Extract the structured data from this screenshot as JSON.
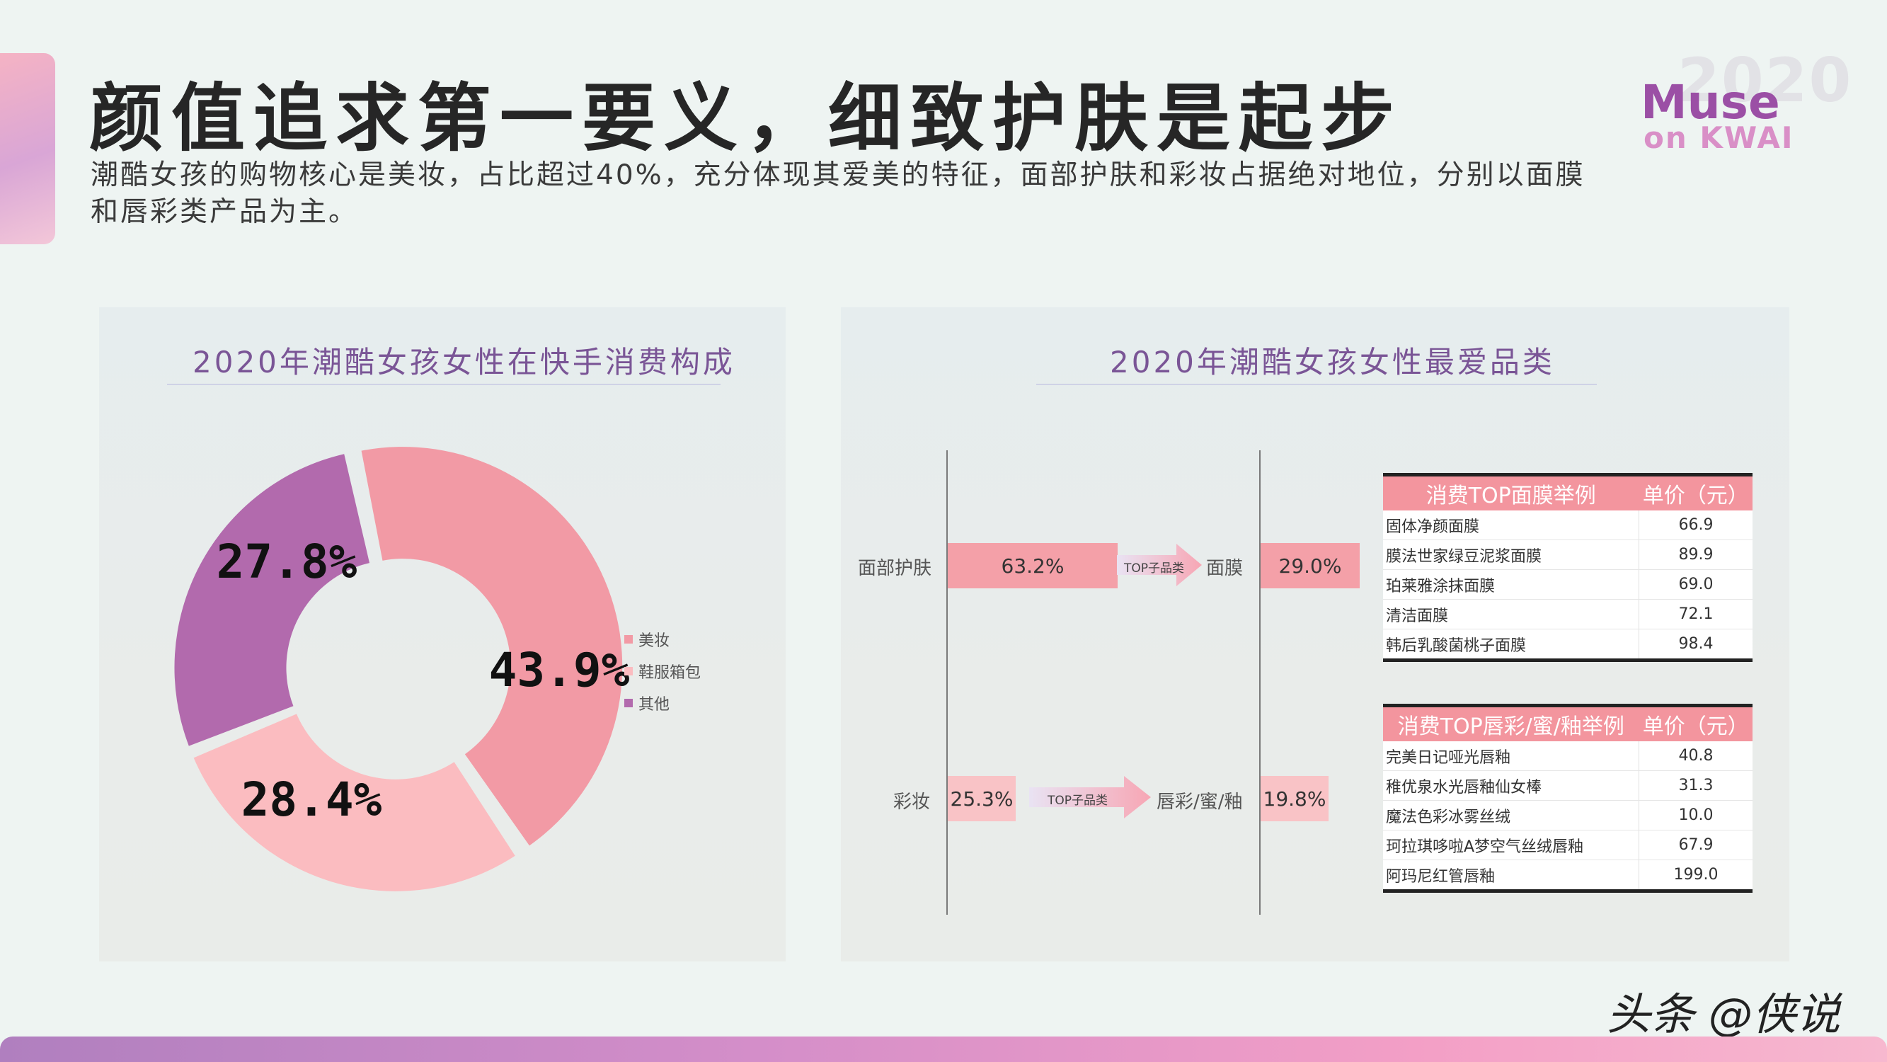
{
  "header": {
    "title": "颜值追求第一要义，细致护肤是起步",
    "subtitle": "潮酷女孩的购物核心是美妆，占比超过40%，充分体现其爱美的特征，面部护肤和彩妆占据绝对地位，分别以面膜和唇彩类产品为主。"
  },
  "logo": {
    "year": "2020",
    "line1": "Muse",
    "line2": "on KWAI"
  },
  "chart_data": [
    {
      "type": "pie",
      "title": "2020年潮酷女孩女性在快手消费构成",
      "donut": true,
      "categories": [
        "美妆",
        "鞋服箱包",
        "其他"
      ],
      "values": [
        43.9,
        28.4,
        27.8
      ],
      "data_labels": [
        "43.9%",
        "28.4%",
        "27.8%"
      ],
      "colors": [
        "#f29aa5",
        "#fbbcc0",
        "#b26aad"
      ],
      "legend_position": "right"
    },
    {
      "type": "bar",
      "title": "2020年潮酷女孩女性最爱品类",
      "categories": [
        "面部护肤",
        "彩妆"
      ],
      "series": [
        {
          "values": [
            63.2,
            25.3
          ],
          "data_labels": [
            "63.2%",
            "25.3%"
          ]
        }
      ],
      "top_categories": [
        "面膜",
        "唇彩/蜜/釉"
      ],
      "top_values": [
        29.0,
        19.8
      ],
      "top_labels": [
        "29.0%",
        "19.8%"
      ],
      "arrow_label": "TOP子品类",
      "tables": [
        {
          "headers": [
            "消费TOP面膜举例",
            "单价（元）"
          ],
          "rows": [
            [
              "固体净颜面膜",
              "66.9"
            ],
            [
              "膜法世家绿豆泥浆面膜",
              "89.9"
            ],
            [
              "珀莱雅涂抹面膜",
              "69.0"
            ],
            [
              "清洁面膜",
              "72.1"
            ],
            [
              "韩后乳酸菌桃子面膜",
              "98.4"
            ]
          ]
        },
        {
          "headers": [
            "消费TOP唇彩/蜜/釉举例",
            "单价（元）"
          ],
          "rows": [
            [
              "完美日记哑光唇釉",
              "40.8"
            ],
            [
              "稚优泉水光唇釉仙女棒",
              "31.3"
            ],
            [
              "魔法色彩冰雾丝绒",
              "10.0"
            ],
            [
              "珂拉琪哆啦A梦空气丝绒唇釉",
              "67.9"
            ],
            [
              "阿玛尼红管唇釉",
              "199.0"
            ]
          ]
        }
      ]
    }
  ],
  "watermark": "头条 @侠说",
  "colors": {
    "accent": "#f3959e",
    "title_purple": "#7a5596"
  }
}
